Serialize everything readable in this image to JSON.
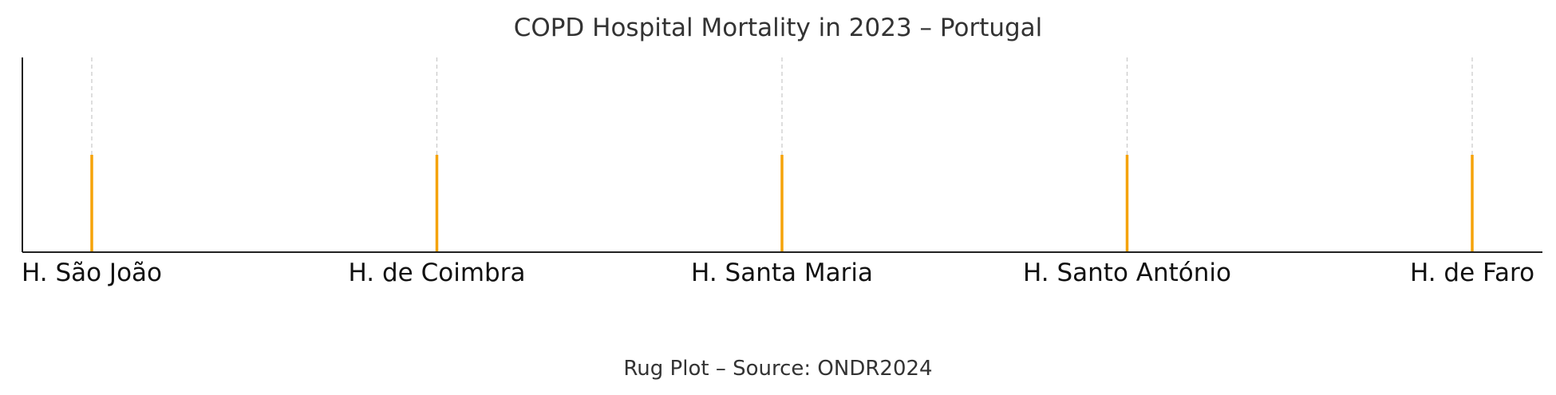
{
  "chart_data": {
    "type": "rug",
    "title": "COPD Hospital Mortality in 2023 – Portugal",
    "caption": "Rug Plot – Source: ONDR2024",
    "categories": [
      "H. São João",
      "H. de Coimbra",
      "H. Santa Maria",
      "H. Santo António",
      "H. de Faro"
    ],
    "values": [
      1,
      1,
      1,
      1,
      1
    ],
    "grid": "vertical dashed",
    "colors": {
      "rug": "#f5a30a",
      "grid": "#c8c8c8",
      "axis": "#222222"
    }
  }
}
